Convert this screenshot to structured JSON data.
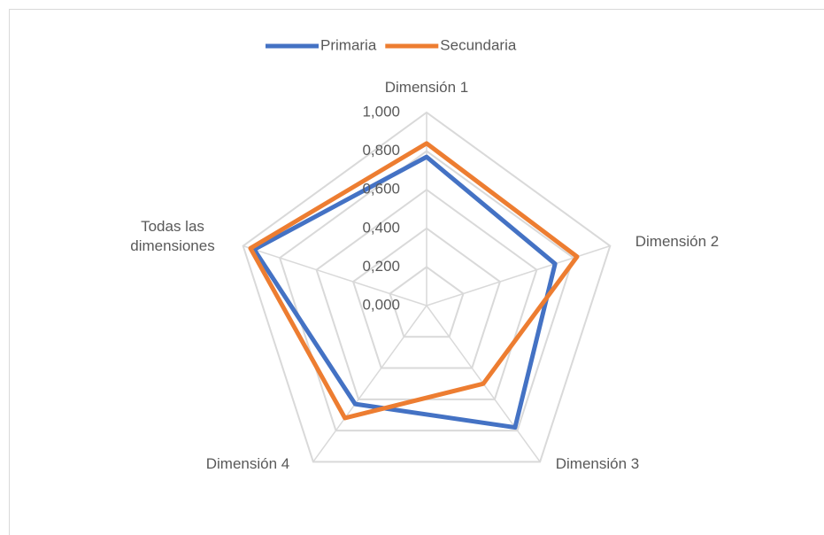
{
  "chart_data": {
    "type": "radar",
    "categories": [
      "Dimensión 1",
      "Dimensión 2",
      "Dimensión 3",
      "Dimensión 4",
      "Todas las dimensiones"
    ],
    "series": [
      {
        "name": "Primaria",
        "color": "#4472c4",
        "values": [
          0.77,
          0.7,
          0.78,
          0.63,
          0.94
        ]
      },
      {
        "name": "Secundaria",
        "color": "#ed7d31",
        "values": [
          0.84,
          0.82,
          0.5,
          0.72,
          0.96
        ]
      }
    ],
    "ylim": [
      0,
      1
    ],
    "yticks": [
      {
        "value": 0,
        "label": "0,000"
      },
      {
        "value": 0.2,
        "label": "0,200"
      },
      {
        "value": 0.4,
        "label": "0,400"
      },
      {
        "value": 0.6,
        "label": "0,600"
      },
      {
        "value": 0.8,
        "label": "0,800"
      },
      {
        "value": 1,
        "label": "1,000"
      }
    ],
    "grid": true,
    "legend": "top"
  }
}
